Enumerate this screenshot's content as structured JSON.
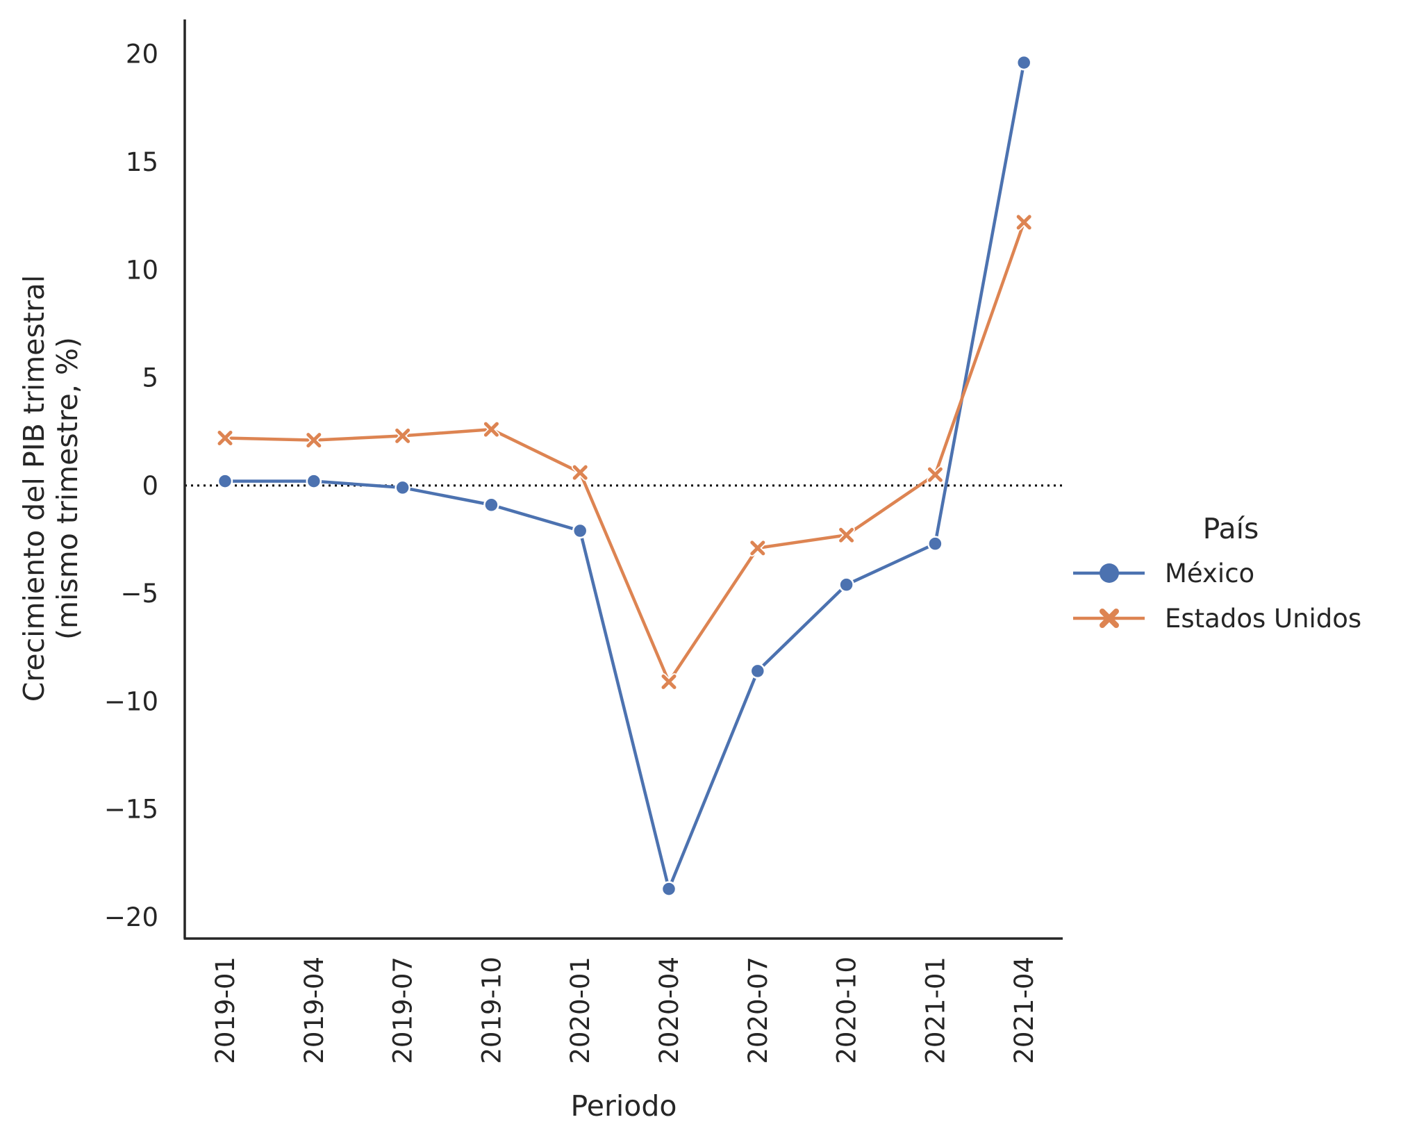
{
  "chart_data": {
    "type": "line",
    "xlabel": "Periodo",
    "ylabel_line1": "Crecimiento del PIB trimestral",
    "ylabel_line2": "(mismo trimestre, %)",
    "categories": [
      "2019-01",
      "2019-04",
      "2019-07",
      "2019-10",
      "2020-01",
      "2020-04",
      "2020-07",
      "2020-10",
      "2021-01",
      "2021-04"
    ],
    "ylim": [
      -21,
      21.6
    ],
    "yticks": [
      -20,
      -15,
      -10,
      -5,
      0,
      5,
      10,
      15,
      20
    ],
    "ytick_labels": [
      "−20",
      "−15",
      "−10",
      "−5",
      "0",
      "5",
      "10",
      "15",
      "20"
    ],
    "reference_line": {
      "y": 0,
      "style": "dotted",
      "color": "#000000"
    },
    "legend": {
      "title": "País",
      "position": "right"
    },
    "grid": false,
    "series": [
      {
        "name": "México",
        "marker": "circle",
        "color": "#4c72b0",
        "values": [
          0.2,
          0.2,
          -0.1,
          -0.9,
          -2.1,
          -18.7,
          -8.6,
          -4.6,
          -2.7,
          19.6
        ]
      },
      {
        "name": "Estados Unidos",
        "marker": "x",
        "color": "#dd8452",
        "values": [
          2.2,
          2.1,
          2.3,
          2.6,
          0.6,
          -9.1,
          -2.9,
          -2.3,
          0.5,
          12.2
        ]
      }
    ]
  }
}
